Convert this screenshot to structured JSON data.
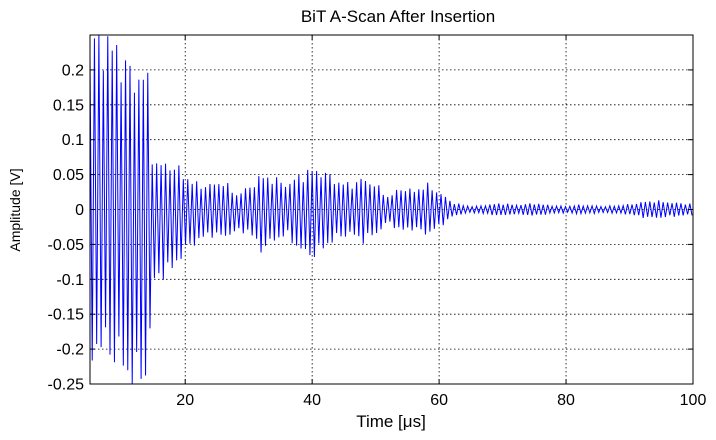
{
  "chart_data": {
    "type": "line",
    "title": "BiT A-Scan After Insertion",
    "xlabel": "Time [μs]",
    "ylabel": "Amplitude [V]",
    "xlim": [
      5,
      100
    ],
    "ylim": [
      -0.25,
      0.25
    ],
    "x_ticks": [
      20,
      40,
      60,
      80,
      100
    ],
    "x_tick_labels": [
      "20",
      "40",
      "60",
      "80",
      "100"
    ],
    "y_ticks": [
      0.2,
      0.15,
      0.1,
      0.05,
      0,
      -0.05,
      -0.1,
      -0.15,
      -0.2,
      -0.25
    ],
    "y_tick_labels": [
      "0.2",
      "0.15",
      "0.1",
      "0.05",
      "0",
      "-0.05",
      "-0.1",
      "-0.15",
      "-0.2",
      "-0.25"
    ],
    "grid": true,
    "line_color": "#0000ff",
    "series": [
      {
        "x": [
          5,
          6,
          8,
          10,
          11,
          12,
          13,
          14,
          14.5,
          15,
          16,
          18,
          20,
          22,
          24,
          26,
          28,
          30,
          32,
          34,
          36,
          38,
          40,
          42,
          44,
          46,
          48,
          50,
          52,
          54,
          56,
          58,
          60,
          62,
          64,
          66,
          68,
          70,
          72,
          75,
          78,
          80,
          82,
          84,
          86,
          88,
          90,
          92,
          94,
          96,
          98,
          100
        ],
        "envelope": [
          0.25,
          0.25,
          0.25,
          0.25,
          0.25,
          0.25,
          0.25,
          0.24,
          0.16,
          0.1,
          0.09,
          0.085,
          0.06,
          0.045,
          0.04,
          0.045,
          0.03,
          0.035,
          0.06,
          0.05,
          0.04,
          0.06,
          0.07,
          0.06,
          0.045,
          0.04,
          0.05,
          0.04,
          0.02,
          0.035,
          0.03,
          0.04,
          0.028,
          0.012,
          0.006,
          0.005,
          0.008,
          0.01,
          0.007,
          0.01,
          0.006,
          0.005,
          0.007,
          0.006,
          0.005,
          0.006,
          0.008,
          0.012,
          0.014,
          0.012,
          0.01,
          0.009
        ],
        "offset": [
          0.02,
          0.02,
          0.02,
          0.0,
          -0.02,
          -0.03,
          -0.02,
          -0.02,
          -0.03,
          -0.02,
          -0.015,
          -0.01,
          -0.005,
          -0.005,
          0,
          0,
          -0.005,
          0,
          -0.005,
          0,
          0,
          -0.005,
          -0.005,
          0,
          0,
          0,
          0,
          0,
          0,
          0,
          0,
          0,
          0,
          0,
          0,
          0,
          0,
          0,
          0,
          0,
          0,
          0,
          0,
          0,
          0,
          0,
          0,
          0,
          0,
          0,
          0,
          0
        ]
      }
    ]
  }
}
